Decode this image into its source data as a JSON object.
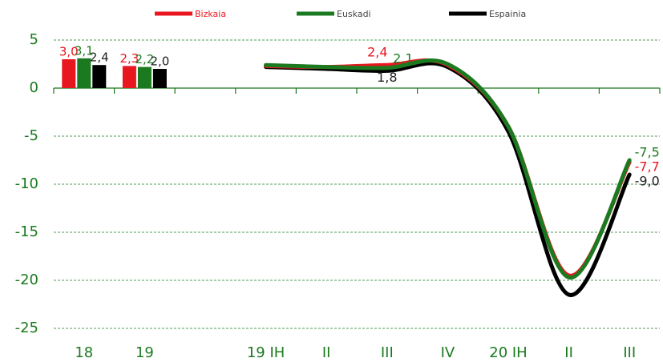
{
  "chart_data": {
    "type": "bar_line",
    "categories": [
      "18",
      "19",
      null,
      "19 IH",
      "II",
      "III",
      "IV",
      "20 IH",
      "II",
      "III"
    ],
    "series": [
      {
        "name": "Bizkaia",
        "color": "#e8171f",
        "bar_values": [
          3.0,
          2.3,
          null,
          null,
          null,
          null,
          null,
          null,
          null,
          null
        ],
        "bar_value_labels": [
          "3,0",
          "2,3",
          null,
          null,
          null,
          null,
          null,
          null,
          null,
          null
        ],
        "line_values": [
          null,
          null,
          null,
          2.3,
          2.2,
          2.4,
          2.4,
          -4.0,
          -19.5,
          -7.7
        ],
        "line_value_labels": [
          null,
          null,
          null,
          null,
          null,
          "2,4",
          null,
          null,
          null,
          "-7,7"
        ]
      },
      {
        "name": "Euskadi",
        "color": "#1b7a1f",
        "bar_values": [
          3.1,
          2.2,
          null,
          null,
          null,
          null,
          null,
          null,
          null,
          null
        ],
        "bar_value_labels": [
          "3,1",
          "2,2",
          null,
          null,
          null,
          null,
          null,
          null,
          null,
          null
        ],
        "line_values": [
          null,
          null,
          null,
          2.4,
          2.2,
          2.1,
          2.5,
          -4.0,
          -19.7,
          -7.5
        ],
        "line_value_labels": [
          null,
          null,
          null,
          null,
          null,
          "2,1",
          null,
          null,
          null,
          "-7,5"
        ]
      },
      {
        "name": "Espainia",
        "color": "#000000",
        "bar_values": [
          2.4,
          2.0,
          null,
          null,
          null,
          null,
          null,
          null,
          null,
          null
        ],
        "bar_value_labels": [
          "2,4",
          "2,0",
          null,
          null,
          null,
          null,
          null,
          null,
          null,
          null
        ],
        "line_values": [
          null,
          null,
          null,
          2.2,
          2.0,
          1.8,
          2.2,
          -4.5,
          -21.5,
          -9.0
        ],
        "line_value_labels": [
          null,
          null,
          null,
          null,
          null,
          "1,8",
          null,
          null,
          null,
          "-9,0"
        ]
      }
    ],
    "ylim": [
      -25,
      5
    ],
    "yticks": [
      5,
      0,
      -5,
      -10,
      -15,
      -20,
      -25
    ],
    "grid": true,
    "legend": "top"
  }
}
